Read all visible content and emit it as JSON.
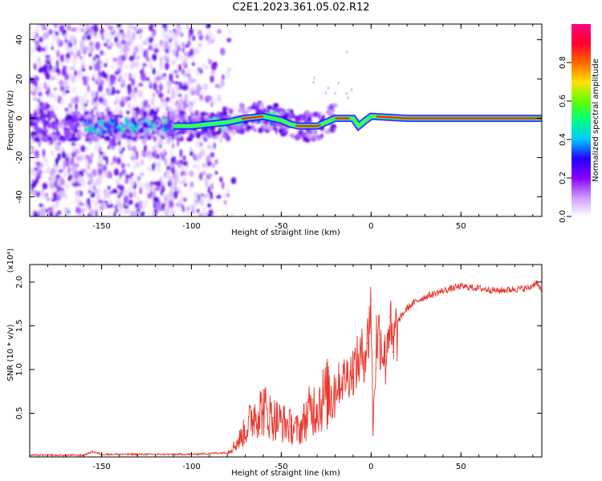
{
  "title": "C2E1.2023.361.05.02.R12",
  "chart_data": [
    {
      "type": "heatmap",
      "title": "C2E1.2023.361.05.02.R12",
      "xlabel": "Height of straight line (km)",
      "ylabel": "Frequency (Hz)",
      "xlim": [
        -190,
        95
      ],
      "ylim": [
        -50,
        48
      ],
      "xticks": [
        -150,
        -100,
        -50,
        0,
        50
      ],
      "yticks": [
        -40,
        -20,
        0,
        20,
        40
      ],
      "colorbar": {
        "label": "Normalized spectral amplitude",
        "range": [
          0,
          1
        ],
        "ticks": [
          "0.0",
          "0.2",
          "0.4",
          "0.6",
          "0.8"
        ],
        "colors": [
          "#ffffff",
          "#cc99ff",
          "#8800ff",
          "#2200ff",
          "#00c8ff",
          "#00ff80",
          "#66ff00",
          "#ffe000",
          "#ff6600",
          "#ff0030",
          "#ff0080"
        ]
      },
      "ridge": [
        {
          "x": -110,
          "f": -4
        },
        {
          "x": -100,
          "f": -4
        },
        {
          "x": -90,
          "f": -3
        },
        {
          "x": -80,
          "f": -2
        },
        {
          "x": -70,
          "f": 0
        },
        {
          "x": -60,
          "f": 1
        },
        {
          "x": -50,
          "f": -1
        },
        {
          "x": -45,
          "f": -3
        },
        {
          "x": -40,
          "f": -4
        },
        {
          "x": -30,
          "f": -4
        },
        {
          "x": -25,
          "f": -2
        },
        {
          "x": -20,
          "f": 0
        },
        {
          "x": -10,
          "f": 0
        },
        {
          "x": -7,
          "f": -4
        },
        {
          "x": -3,
          "f": -1
        },
        {
          "x": 0,
          "f": 1
        },
        {
          "x": 20,
          "f": 0
        },
        {
          "x": 95,
          "f": 0
        }
      ]
    },
    {
      "type": "line",
      "xlabel": "Height of straight line (km)",
      "ylabel": "SNR (10 * v/v)",
      "multiplier": "(x10⁴)",
      "xlim": [
        -190,
        95
      ],
      "ylim": [
        0,
        2.2
      ],
      "xticks": [
        -150,
        -100,
        -50,
        0,
        50
      ],
      "yticks": [
        0.5,
        1.0,
        1.5,
        2.0
      ],
      "ytick_labels": [
        "0.5",
        "1.0",
        "1.5",
        "2.0"
      ],
      "series": [
        {
          "name": "SNR",
          "color": "#e8382e",
          "x": [
            -190,
            -160,
            -155,
            -150,
            -120,
            -100,
            -90,
            -80,
            -75,
            -70,
            -65,
            -60,
            -55,
            -50,
            -45,
            -40,
            -35,
            -30,
            -25,
            -20,
            -15,
            -10,
            -5,
            -2,
            0,
            1,
            3,
            5,
            8,
            10,
            12,
            15,
            20,
            25,
            30,
            40,
            50,
            60,
            70,
            80,
            88,
            92,
            95
          ],
          "y": [
            0.02,
            0.02,
            0.06,
            0.03,
            0.03,
            0.03,
            0.04,
            0.05,
            0.15,
            0.3,
            0.5,
            0.55,
            0.45,
            0.4,
            0.35,
            0.3,
            0.5,
            0.6,
            0.7,
            0.8,
            0.9,
            1.0,
            1.15,
            1.3,
            1.8,
            0.3,
            1.35,
            1.4,
            1.1,
            1.6,
            1.2,
            1.55,
            1.7,
            1.78,
            1.83,
            1.9,
            1.95,
            1.93,
            1.9,
            1.92,
            1.93,
            2.0,
            1.88
          ]
        }
      ]
    }
  ]
}
